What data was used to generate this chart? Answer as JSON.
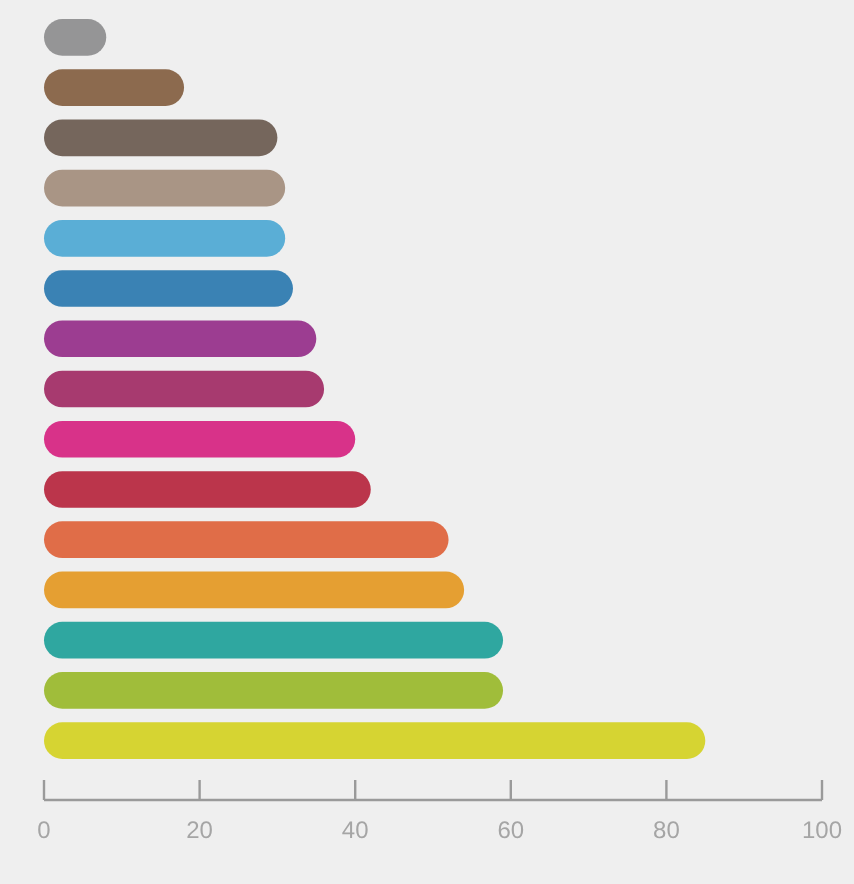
{
  "chart_data": {
    "type": "bar",
    "orientation": "horizontal",
    "categories": [
      null,
      null,
      null,
      null,
      null,
      null,
      null,
      null,
      null,
      null,
      null,
      null,
      null,
      null,
      null
    ],
    "values": [
      8,
      18,
      30,
      31,
      31,
      32,
      35,
      36,
      40,
      42,
      52,
      54,
      59,
      59,
      85
    ],
    "colors": [
      "#959596",
      "#8c6a4e",
      "#75665c",
      "#a99585",
      "#5aaed6",
      "#3a82b4",
      "#9c3d91",
      "#a73a6f",
      "#d83289",
      "#bb354b",
      "#e06d48",
      "#e59f32",
      "#2fa7a0",
      "#a0bd3a",
      "#d6d432"
    ],
    "xlim": [
      0,
      100
    ],
    "xticks": [
      0,
      20,
      40,
      60,
      80,
      100
    ],
    "tick_labels": "x",
    "grid": false
  }
}
